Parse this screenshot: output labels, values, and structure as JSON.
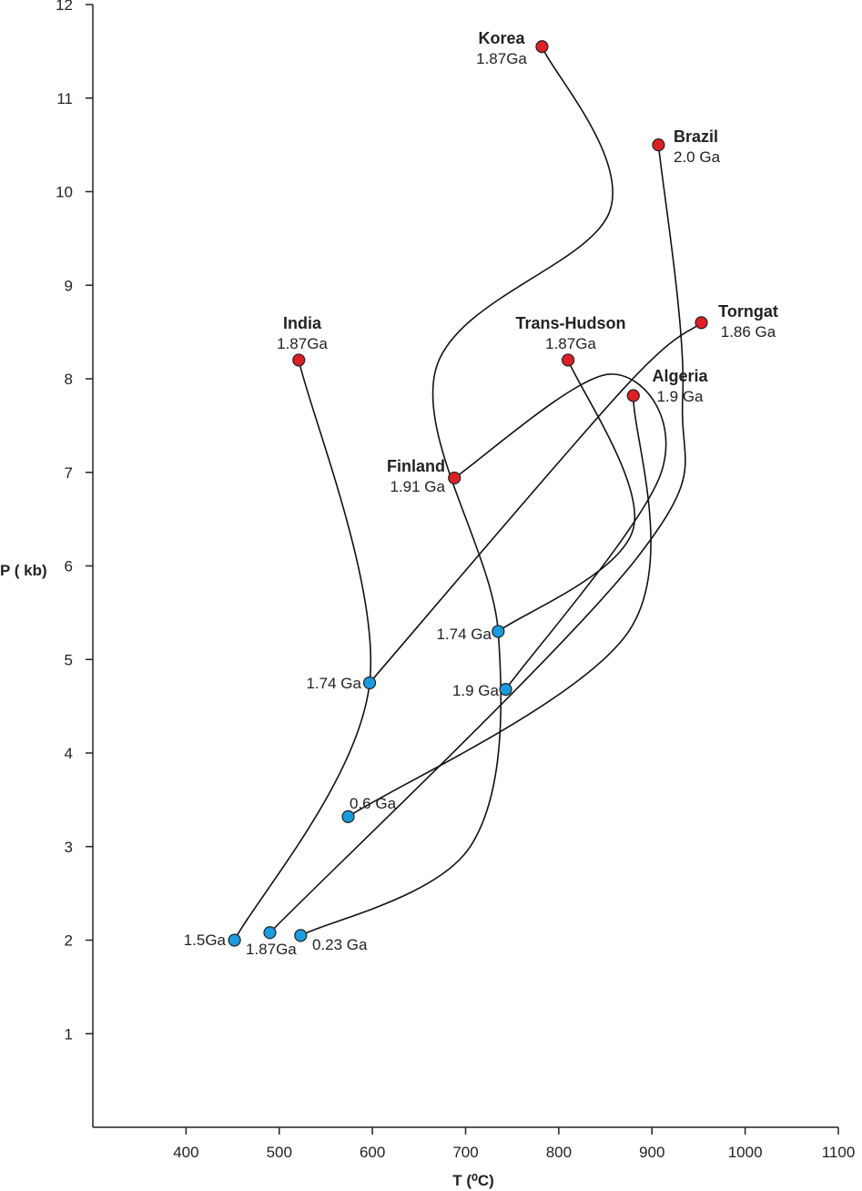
{
  "chart_data": {
    "type": "line",
    "xlabel": "T (⁰C)",
    "ylabel": "P ( kb)",
    "xlim": [
      300,
      1100
    ],
    "ylim": [
      0,
      12
    ],
    "xticks": [
      400,
      500,
      600,
      700,
      800,
      900,
      1000,
      1100
    ],
    "yticks": [
      1,
      2,
      3,
      4,
      5,
      6,
      7,
      8,
      9,
      10,
      11,
      12
    ],
    "grid": false,
    "colors": {
      "start": "#dd1f26",
      "end": "#1b9be0",
      "path": "#111111"
    },
    "series": [
      {
        "name": "Korea",
        "age": "1.87Ga",
        "start": [
          782,
          11.55
        ],
        "via": [
          [
            855,
            9.8
          ],
          [
            668,
            8.1
          ],
          [
            735,
            5.3
          ],
          [
            705,
            3.0
          ]
        ],
        "end": [
          523,
          2.05
        ],
        "end_label": "0.23 Ga"
      },
      {
        "name": "Brazil",
        "age": "2.0 Ga",
        "start": [
          907,
          10.5
        ],
        "via": [
          [
            933,
            7.8
          ],
          [
            885,
            6.1
          ]
        ],
        "end": [
          490,
          2.08
        ],
        "end_label": "1.87Ga"
      },
      {
        "name": "Torngat",
        "age": "1.86 Ga",
        "start": [
          953,
          8.6
        ],
        "via": [
          [
            870,
            7.9
          ]
        ],
        "end": [
          597,
          4.75
        ],
        "end_label": "1.74 Ga"
      },
      {
        "name": "India",
        "age": "1.87Ga",
        "start": [
          521,
          8.2
        ],
        "via": [
          [
            597,
            4.75
          ]
        ],
        "end": [
          452,
          2.0
        ],
        "end_label": "1.5Ga"
      },
      {
        "name": "Trans-Hudson",
        "age": "1.87Ga",
        "start": [
          810,
          8.2
        ],
        "via": [
          [
            880,
            6.4
          ]
        ],
        "end": [
          735,
          5.3
        ],
        "end_label": "1.74 Ga"
      },
      {
        "name": "Algeria",
        "age": "1.9 Ga",
        "start": [
          880,
          7.82
        ],
        "via": [
          [
            875,
            5.3
          ]
        ],
        "end": [
          574,
          3.32
        ],
        "end_label": "0.6 Ga"
      },
      {
        "name": "Finland",
        "age": "1.91 Ga",
        "start": [
          688,
          6.94
        ],
        "via": [
          [
            855,
            8.05
          ],
          [
            910,
            7.0
          ]
        ],
        "end": [
          743,
          4.68
        ],
        "end_label": "1.9 Ga"
      }
    ]
  }
}
